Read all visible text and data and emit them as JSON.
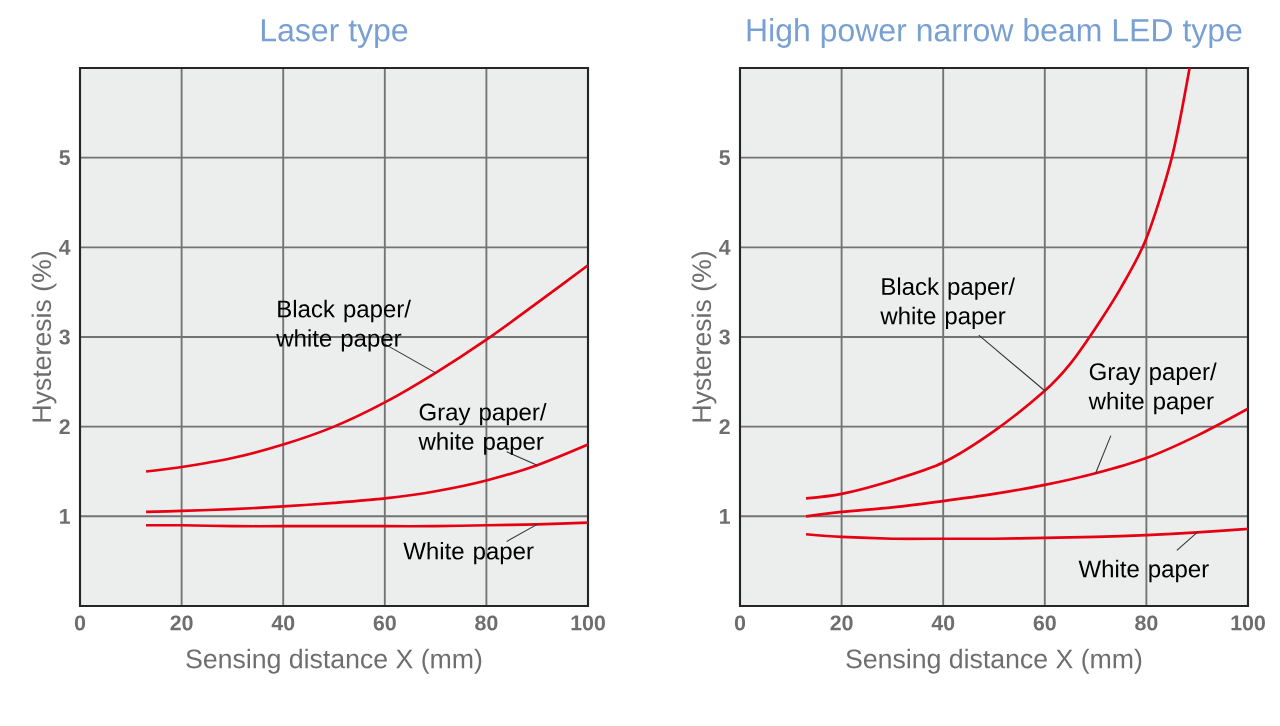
{
  "chart_data": [
    {
      "type": "line",
      "title": "Laser type",
      "xlabel": "Sensing distance X (mm)",
      "ylabel": "Hysteresis (%)",
      "xlim": [
        0,
        100
      ],
      "ylim": [
        0,
        6
      ],
      "xticks": [
        0,
        20,
        40,
        60,
        80,
        100
      ],
      "yticks": [
        1,
        2,
        3,
        4,
        5
      ],
      "grid": true,
      "series": [
        {
          "name": "Black paper/ white paper",
          "color": "#e60012",
          "x": [
            13,
            20,
            30,
            40,
            50,
            60,
            70,
            80,
            90,
            100
          ],
          "values": [
            1.5,
            1.55,
            1.65,
            1.8,
            2.0,
            2.27,
            2.6,
            2.97,
            3.38,
            3.8
          ]
        },
        {
          "name": "Gray paper/ white paper",
          "color": "#e60012",
          "x": [
            13,
            20,
            30,
            40,
            50,
            60,
            70,
            80,
            90,
            100
          ],
          "values": [
            1.05,
            1.06,
            1.08,
            1.11,
            1.15,
            1.2,
            1.28,
            1.4,
            1.57,
            1.8
          ]
        },
        {
          "name": "White paper",
          "color": "#e60012",
          "x": [
            13,
            20,
            30,
            40,
            50,
            60,
            70,
            80,
            90,
            100
          ],
          "values": [
            0.9,
            0.9,
            0.89,
            0.89,
            0.89,
            0.89,
            0.89,
            0.9,
            0.91,
            0.93
          ]
        }
      ]
    },
    {
      "type": "line",
      "title": "High power narrow beam LED type",
      "xlabel": "Sensing distance X (mm)",
      "ylabel": "Hysteresis (%)",
      "xlim": [
        0,
        100
      ],
      "ylim": [
        0,
        6
      ],
      "xticks": [
        0,
        20,
        40,
        60,
        80,
        100
      ],
      "yticks": [
        1,
        2,
        3,
        4,
        5
      ],
      "grid": true,
      "series": [
        {
          "name": "Black paper/ white paper",
          "color": "#e60012",
          "x": [
            13,
            20,
            30,
            40,
            50,
            60,
            65,
            70,
            75,
            80,
            85,
            88.5
          ],
          "values": [
            1.2,
            1.25,
            1.4,
            1.6,
            1.95,
            2.4,
            2.7,
            3.1,
            3.55,
            4.1,
            5.0,
            6.0
          ]
        },
        {
          "name": "Gray paper/ white paper",
          "color": "#e60012",
          "x": [
            13,
            20,
            30,
            40,
            50,
            60,
            70,
            80,
            90,
            100
          ],
          "values": [
            1.0,
            1.05,
            1.1,
            1.17,
            1.25,
            1.35,
            1.48,
            1.65,
            1.9,
            2.2
          ]
        },
        {
          "name": "White paper",
          "color": "#e60012",
          "x": [
            13,
            20,
            30,
            40,
            50,
            60,
            70,
            80,
            90,
            100
          ],
          "values": [
            0.8,
            0.77,
            0.75,
            0.75,
            0.75,
            0.76,
            0.77,
            0.79,
            0.82,
            0.86
          ]
        }
      ]
    }
  ]
}
